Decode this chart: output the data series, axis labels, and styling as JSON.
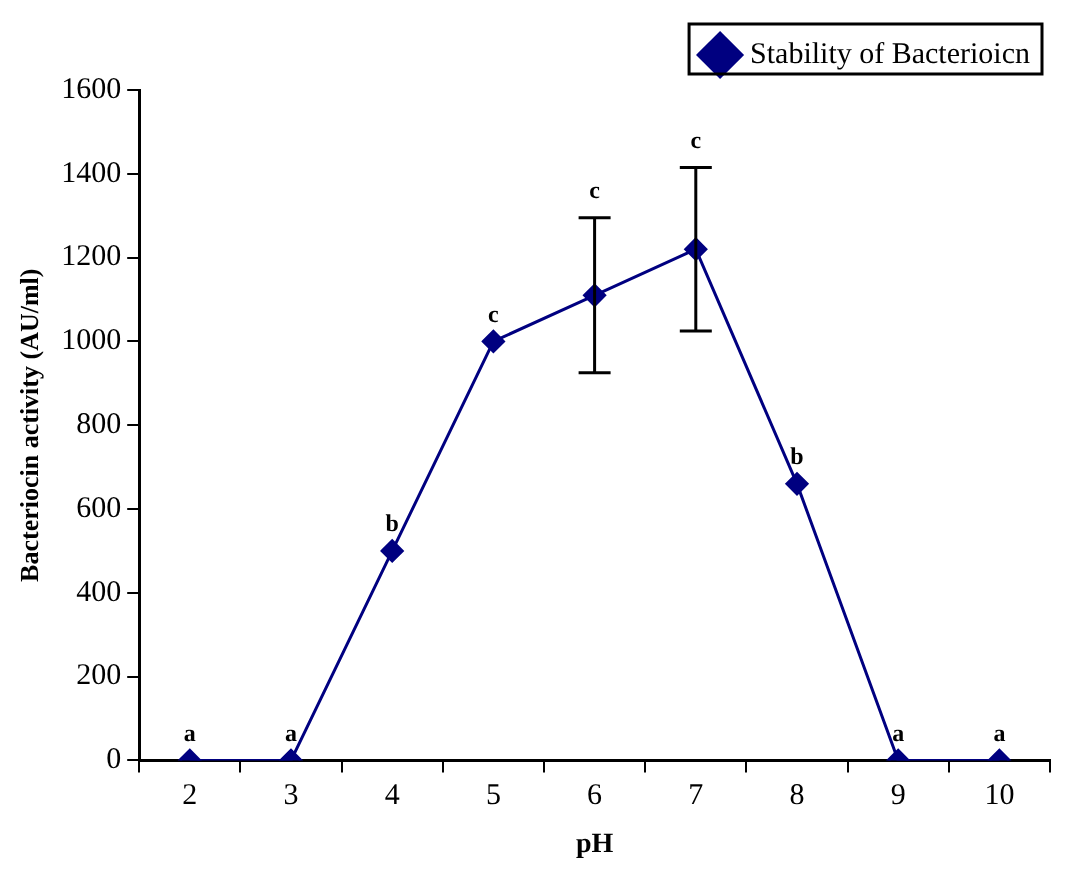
{
  "chart_data": {
    "type": "line",
    "xlabel": "pH",
    "ylabel": "Bacteriocin activity (AU/ml)",
    "categories": [
      "2",
      "3",
      "4",
      "5",
      "6",
      "7",
      "8",
      "9",
      "10"
    ],
    "series": [
      {
        "name": "Stability of Bacterioicn",
        "color": "#000080",
        "values": [
          0,
          0,
          500,
          1000,
          1110,
          1220,
          660,
          0,
          0
        ],
        "errors": [
          null,
          null,
          null,
          null,
          185,
          195,
          null,
          null,
          null
        ]
      }
    ],
    "ylim": [
      0,
      1600
    ],
    "yticks": [
      0,
      200,
      400,
      600,
      800,
      1000,
      1200,
      1400,
      1600
    ],
    "grid": false,
    "legend": "top right",
    "marker": "diamond",
    "line_style": "solid",
    "annotations": [
      {
        "text": "a",
        "x": "2",
        "y": 0
      },
      {
        "text": "a",
        "x": "3",
        "y": 0
      },
      {
        "text": "b",
        "x": "4",
        "y": 500
      },
      {
        "text": "c",
        "x": "5",
        "y": 1000
      },
      {
        "text": "c",
        "x": "6",
        "y": 1295
      },
      {
        "text": "c",
        "x": "7",
        "y": 1415
      },
      {
        "text": "b",
        "x": "8",
        "y": 660
      },
      {
        "text": "a",
        "x": "9",
        "y": 0
      },
      {
        "text": "a",
        "x": "10",
        "y": 0
      }
    ]
  }
}
